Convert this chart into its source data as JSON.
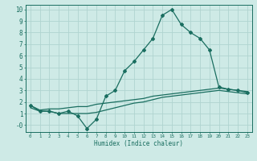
{
  "xlabel": "Humidex (Indice chaleur)",
  "bg_color": "#ceeae6",
  "grid_color": "#b0d4d0",
  "line_color": "#1a6e60",
  "x_main": [
    0,
    1,
    2,
    3,
    4,
    5,
    6,
    7,
    8,
    9,
    10,
    11,
    12,
    13,
    14,
    15,
    16,
    17,
    18,
    19,
    20,
    21,
    22,
    23
  ],
  "y_main": [
    1.7,
    1.2,
    1.2,
    1.0,
    1.2,
    0.8,
    -0.3,
    0.5,
    2.5,
    3.0,
    4.7,
    5.5,
    6.5,
    7.5,
    9.5,
    10.0,
    8.7,
    8.0,
    7.5,
    6.5,
    3.3,
    3.1,
    3.0,
    2.8
  ],
  "x_line1": [
    0,
    1,
    2,
    3,
    4,
    5,
    6,
    7,
    8,
    9,
    10,
    11,
    12,
    13,
    14,
    15,
    16,
    17,
    18,
    19,
    20,
    21,
    22,
    23
  ],
  "y_line1": [
    1.7,
    1.3,
    1.4,
    1.4,
    1.5,
    1.6,
    1.6,
    1.8,
    1.9,
    2.0,
    2.1,
    2.2,
    2.3,
    2.5,
    2.6,
    2.7,
    2.8,
    2.9,
    3.0,
    3.1,
    3.2,
    3.1,
    3.0,
    2.9
  ],
  "x_line2": [
    0,
    1,
    2,
    3,
    4,
    5,
    6,
    7,
    8,
    9,
    10,
    11,
    12,
    13,
    14,
    15,
    16,
    17,
    18,
    19,
    20,
    21,
    22,
    23
  ],
  "y_line2": [
    1.5,
    1.2,
    1.2,
    1.0,
    1.0,
    1.0,
    1.0,
    1.1,
    1.3,
    1.5,
    1.7,
    1.9,
    2.0,
    2.2,
    2.4,
    2.5,
    2.6,
    2.7,
    2.8,
    2.9,
    3.0,
    2.9,
    2.8,
    2.7
  ],
  "ylim": [
    -0.6,
    10.4
  ],
  "xlim": [
    -0.5,
    23.5
  ],
  "yticks": [
    0,
    1,
    2,
    3,
    4,
    5,
    6,
    7,
    8,
    9,
    10
  ],
  "ytick_labels": [
    "-0",
    "1",
    "2",
    "3",
    "4",
    "5",
    "6",
    "7",
    "8",
    "9",
    "10"
  ],
  "xticks": [
    0,
    1,
    2,
    3,
    4,
    5,
    6,
    7,
    8,
    9,
    10,
    11,
    12,
    13,
    14,
    15,
    16,
    17,
    18,
    19,
    20,
    21,
    22,
    23
  ],
  "xtick_labels": [
    "0",
    "1",
    "2",
    "3",
    "4",
    "5",
    "6",
    "7",
    "8",
    "9",
    "10",
    "11",
    "12",
    "13",
    "14",
    "15",
    "16",
    "17",
    "18",
    "19",
    "20",
    "21",
    "22",
    "23"
  ],
  "marker": "D",
  "markersize": 2.0,
  "linewidth": 0.9
}
